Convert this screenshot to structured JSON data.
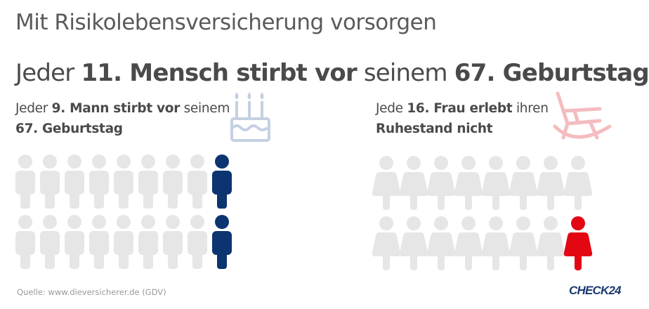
{
  "title": "Mit Risikolebensversicherung vorsorgen",
  "headline": {
    "pre": "Jeder ",
    "bold1": "11. Mensch stirbt vor",
    "mid": " seinem ",
    "bold2": "67. Geburtstag"
  },
  "men": {
    "text": {
      "pre": "Jeder ",
      "bold1": "9. Mann stirbt vor",
      "mid": " seinem",
      "bold2": "67. Geburtstag"
    },
    "icon": "birthday-cake-icon",
    "per_row": 9,
    "rows": 2,
    "highlight_index_per_row": [
      8,
      8
    ],
    "color_base": "#e6e6e6",
    "color_highlight": "#0c3470",
    "icon_color": "#c5d1e2"
  },
  "women": {
    "text": {
      "pre": "Jede ",
      "bold1": "16. Frau erlebt",
      "mid": " ihren",
      "bold2": "Ruhestand nicht"
    },
    "icon": "rocking-chair-icon",
    "per_row": 8,
    "rows": 2,
    "highlight_index_per_row": [
      null,
      7
    ],
    "color_base": "#e6e6e6",
    "color_highlight": "#e30613",
    "icon_color": "#f4bcc0"
  },
  "footer": {
    "source": "Quelle: www.dieversicherer.de (GDV)",
    "logo": "CHECK24"
  }
}
